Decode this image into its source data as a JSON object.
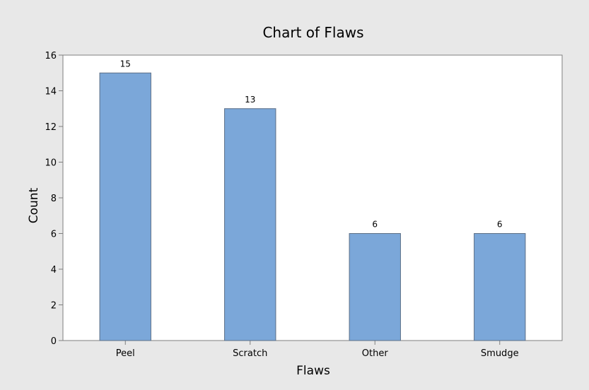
{
  "chart_data": {
    "type": "bar",
    "title": "Chart of Flaws",
    "xlabel": "Flaws",
    "ylabel": "Count",
    "categories": [
      "Peel",
      "Scratch",
      "Other",
      "Smudge"
    ],
    "values": [
      15,
      13,
      6,
      6
    ],
    "data_labels": [
      "15",
      "13",
      "6",
      "6"
    ],
    "ylim": [
      0,
      16
    ],
    "yticks": [
      0,
      2,
      4,
      6,
      8,
      10,
      12,
      14,
      16
    ],
    "ytick_labels": [
      "0",
      "2",
      "4",
      "6",
      "8",
      "10",
      "12",
      "14",
      "16"
    ],
    "grid": false,
    "legend": "none",
    "colors": {
      "background": "#e8e8e8",
      "plot_area": "#ffffff",
      "bar_fill": "#7ba7d9",
      "bar_stroke": "#5c6f86",
      "axis": "#7f7f7f"
    }
  }
}
